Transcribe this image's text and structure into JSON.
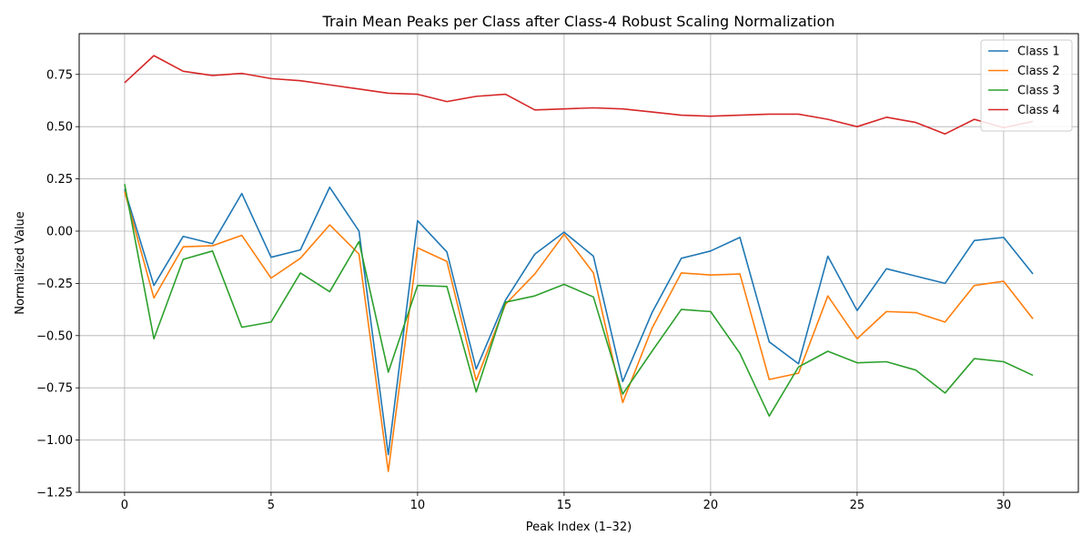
{
  "chart_data": {
    "type": "line",
    "title": "Train Mean Peaks per Class after Class-4 Robust Scaling Normalization",
    "xlabel": "Peak Index (1–32)",
    "ylabel": "Normalized Value",
    "xlim": [
      -1.55,
      32.55
    ],
    "ylim": [
      -1.25,
      0.945
    ],
    "xticks": [
      0,
      5,
      10,
      15,
      20,
      25,
      30
    ],
    "xtick_labels": [
      "0",
      "5",
      "10",
      "15",
      "20",
      "25",
      "30"
    ],
    "yticks": [
      -1.25,
      -1.0,
      -0.75,
      -0.5,
      -0.25,
      0.0,
      0.25,
      0.5,
      0.75
    ],
    "ytick_labels": [
      "−1.25",
      "−1.00",
      "−0.75",
      "−0.50",
      "−0.25",
      "0.00",
      "0.25",
      "0.50",
      "0.75"
    ],
    "grid": true,
    "legend_position": "top-right",
    "x": [
      0,
      1,
      2,
      3,
      4,
      5,
      6,
      7,
      8,
      9,
      10,
      11,
      12,
      13,
      14,
      15,
      16,
      17,
      18,
      19,
      20,
      21,
      22,
      23,
      24,
      25,
      26,
      27,
      28,
      29,
      30,
      31
    ],
    "series": [
      {
        "name": "Class 1",
        "color": "#1f77b4",
        "values": [
          0.2,
          -0.26,
          -0.025,
          -0.06,
          0.18,
          -0.125,
          -0.09,
          0.21,
          0.0,
          -1.07,
          0.05,
          -0.1,
          -0.66,
          -0.33,
          -0.11,
          -0.005,
          -0.12,
          -0.72,
          -0.39,
          -0.13,
          -0.095,
          -0.03,
          -0.53,
          -0.635,
          -0.12,
          -0.38,
          -0.18,
          -0.215,
          -0.25,
          -0.045,
          -0.03,
          -0.205
        ]
      },
      {
        "name": "Class 2",
        "color": "#ff7f0e",
        "values": [
          0.19,
          -0.32,
          -0.075,
          -0.07,
          -0.02,
          -0.225,
          -0.13,
          0.03,
          -0.11,
          -1.15,
          -0.08,
          -0.145,
          -0.715,
          -0.35,
          -0.205,
          -0.015,
          -0.2,
          -0.82,
          -0.465,
          -0.2,
          -0.21,
          -0.205,
          -0.71,
          -0.68,
          -0.31,
          -0.515,
          -0.385,
          -0.39,
          -0.435,
          -0.26,
          -0.24,
          -0.42
        ]
      },
      {
        "name": "Class 3",
        "color": "#2ca02c",
        "values": [
          0.225,
          -0.515,
          -0.135,
          -0.095,
          -0.46,
          -0.435,
          -0.2,
          -0.29,
          -0.05,
          -0.675,
          -0.26,
          -0.265,
          -0.77,
          -0.34,
          -0.31,
          -0.255,
          -0.315,
          -0.78,
          -0.575,
          -0.375,
          -0.385,
          -0.585,
          -0.885,
          -0.65,
          -0.575,
          -0.63,
          -0.625,
          -0.665,
          -0.775,
          -0.61,
          -0.625,
          -0.69
        ]
      },
      {
        "name": "Class 4",
        "color": "#d62728",
        "values": [
          0.71,
          0.84,
          0.765,
          0.745,
          0.755,
          0.73,
          0.72,
          0.7,
          0.68,
          0.66,
          0.655,
          0.62,
          0.645,
          0.655,
          0.58,
          0.585,
          0.59,
          0.585,
          0.57,
          0.555,
          0.55,
          0.555,
          0.56,
          0.56,
          0.535,
          0.5,
          0.545,
          0.52,
          0.465,
          0.535,
          0.495,
          0.525
        ]
      }
    ]
  }
}
